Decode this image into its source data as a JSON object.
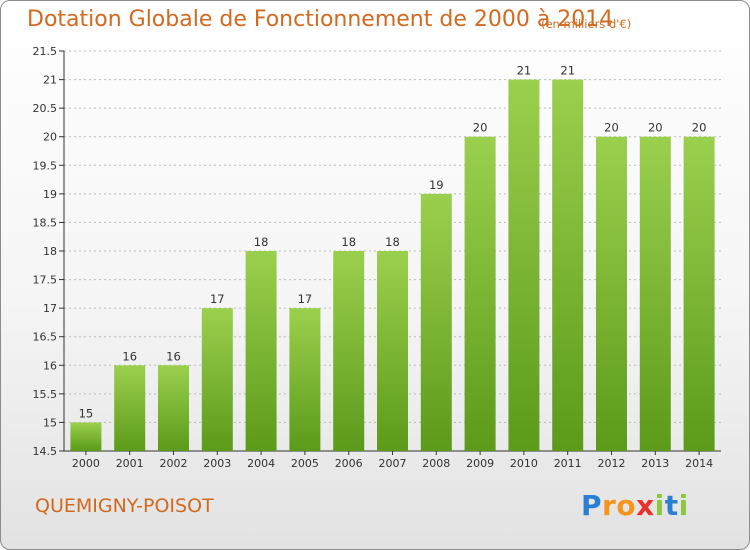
{
  "title": "Dotation Globale de Fonctionnement de 2000 à 2014",
  "subtitle": "(en milliers d'€)",
  "commune": "QUEMIGNY-POISOT",
  "logo": {
    "letters": [
      "P",
      "r",
      "o",
      "x",
      "i",
      "t",
      "i"
    ],
    "colors": [
      "#2a7fd4",
      "#f7941d",
      "#f7941d",
      "#e8312a",
      "#8dc63f",
      "#2a7fd4",
      "#8dc63f"
    ]
  },
  "colors": {
    "bar_top": "#9bd04e",
    "bar_bottom": "#5c9a1a",
    "title": "#d2691e",
    "grid": "#bbbbbb"
  },
  "chart_data": {
    "type": "bar",
    "title": "Dotation Globale de Fonctionnement de 2000 à 2014",
    "subtitle": "(en milliers d'€)",
    "categories": [
      "2000",
      "2001",
      "2002",
      "2003",
      "2004",
      "2005",
      "2006",
      "2007",
      "2008",
      "2009",
      "2010",
      "2011",
      "2012",
      "2013",
      "2014"
    ],
    "values": [
      15,
      16,
      16,
      17,
      18,
      17,
      18,
      18,
      19,
      20,
      21,
      21,
      20,
      20,
      20
    ],
    "data_labels": [
      "15",
      "16",
      "16",
      "17",
      "18",
      "17",
      "18",
      "18",
      "19",
      "20",
      "21",
      "21",
      "20",
      "20",
      "20"
    ],
    "ylim": [
      14.5,
      21.5
    ],
    "yticks": [
      "14.5",
      "15",
      "15.5",
      "16",
      "16.5",
      "17",
      "17.5",
      "18",
      "18.5",
      "19",
      "19.5",
      "20",
      "20.5",
      "21",
      "21.5"
    ],
    "grid": true,
    "legend": "none"
  }
}
